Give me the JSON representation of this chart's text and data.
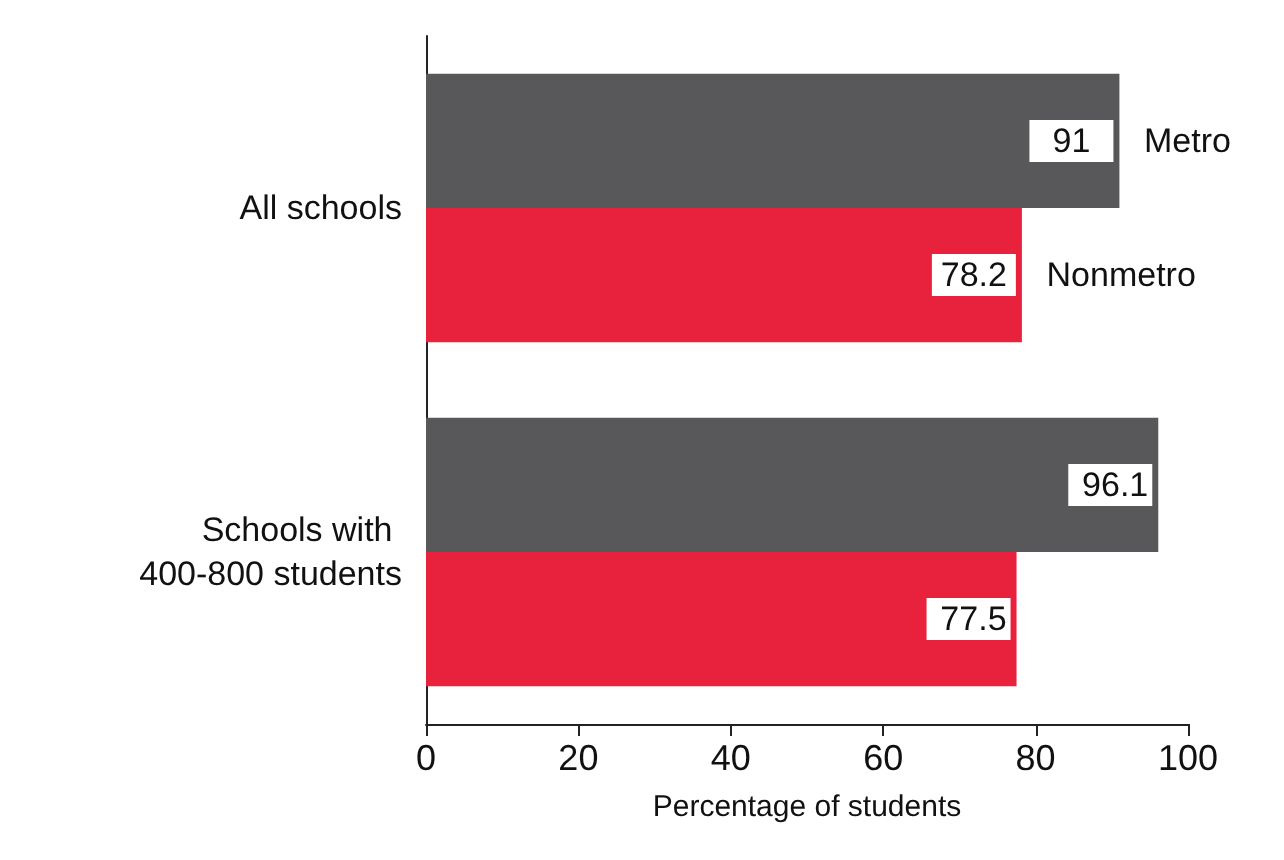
{
  "chart_data": {
    "type": "bar",
    "orientation": "horizontal",
    "xlabel": "Percentage of students",
    "categories": [
      "All schools",
      "Schools with 400-800 students"
    ],
    "series": [
      {
        "name": "Metro",
        "color": "#58585a",
        "values": [
          91,
          96.1
        ]
      },
      {
        "name": "Nonmetro",
        "color": "#e8213c",
        "values": [
          78.2,
          77.5
        ]
      }
    ],
    "xlim": [
      0,
      100
    ],
    "xticks": [
      0,
      20,
      40,
      60,
      80,
      100
    ],
    "grid": false,
    "legend": false,
    "data_labels": true
  }
}
